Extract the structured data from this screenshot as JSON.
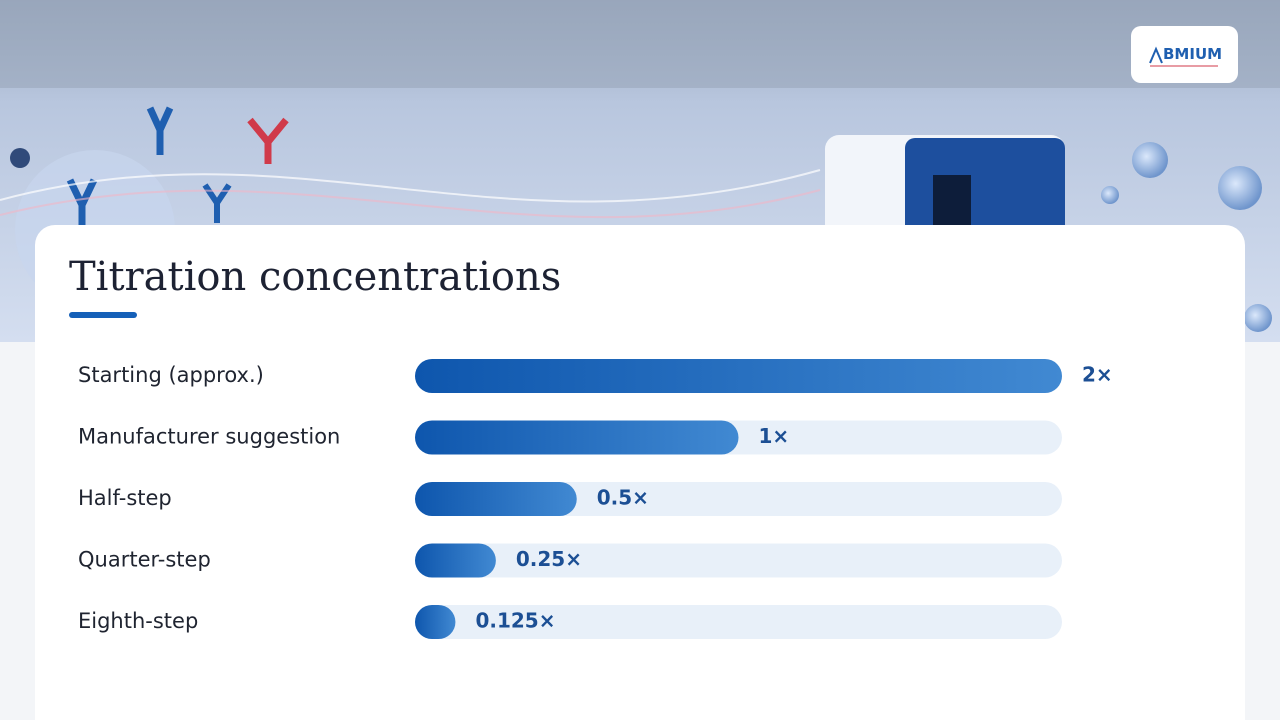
{
  "logo": "BMIUM",
  "chart_data": {
    "type": "bar",
    "orientation": "horizontal",
    "title": "Titration concentrations",
    "categories": [
      "Starting (approx.)",
      "Manufacturer suggestion",
      "Half-step",
      "Quarter-step",
      "Eighth-step"
    ],
    "values": [
      2,
      1,
      0.5,
      0.25,
      0.125
    ],
    "value_labels": [
      "2×",
      "1×",
      "0.5×",
      "0.25×",
      "0.125×"
    ],
    "xlim": [
      0,
      2
    ],
    "color": "#1560b8"
  }
}
